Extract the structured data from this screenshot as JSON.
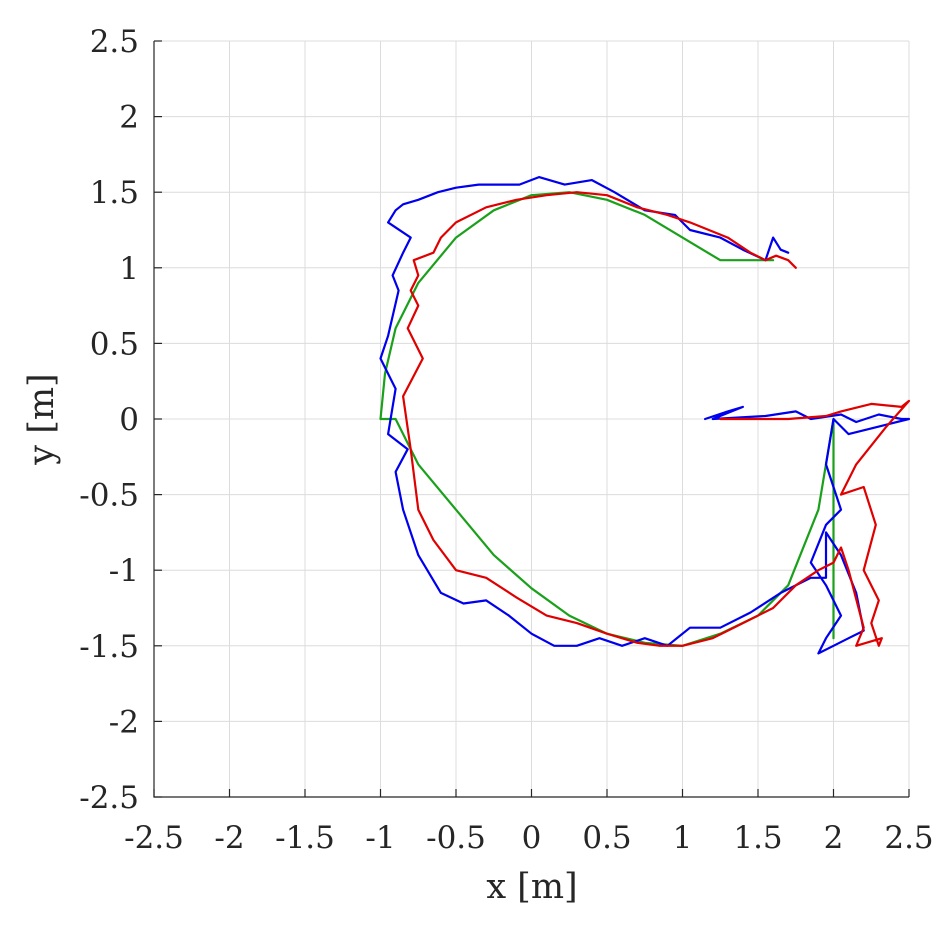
{
  "chart_data": {
    "type": "line",
    "title": "",
    "xlabel": "x [m]",
    "ylabel": "y [m]",
    "xlim": [
      -2.5,
      2.5
    ],
    "ylim": [
      -2.5,
      2.5
    ],
    "xticks": [
      "-2.5",
      "-2",
      "-1.5",
      "-1",
      "-0.5",
      "0",
      "0.5",
      "1",
      "1.5",
      "2",
      "2.5"
    ],
    "yticks": [
      "2.5",
      "2",
      "1.5",
      "1",
      "0.5",
      "0",
      "-0.5",
      "-1",
      "-1.5",
      "-2",
      "-2.5"
    ],
    "grid": true,
    "legend": false,
    "series": [
      {
        "color": "#1aa01a",
        "x": [
          2.0,
          2.0,
          1.9,
          1.7,
          1.5,
          1.25,
          1.0,
          0.75,
          0.5,
          0.25,
          0.0,
          -0.25,
          -0.5,
          -0.75,
          -0.9,
          -1.0,
          -0.97,
          -0.9,
          -0.75,
          -0.5,
          -0.25,
          0.0,
          0.25,
          0.5,
          0.75,
          1.0,
          1.25,
          1.5,
          1.6
        ],
        "y": [
          -1.45,
          0.0,
          -0.6,
          -1.1,
          -1.3,
          -1.42,
          -1.5,
          -1.48,
          -1.42,
          -1.3,
          -1.12,
          -0.9,
          -0.6,
          -0.3,
          0.0,
          0.0,
          0.3,
          0.6,
          0.9,
          1.2,
          1.38,
          1.48,
          1.5,
          1.45,
          1.35,
          1.2,
          1.05,
          1.05,
          1.05
        ]
      },
      {
        "color": "#0000ee",
        "x": [
          1.15,
          1.3,
          1.4,
          1.2,
          1.55,
          1.75,
          1.85,
          2.05,
          2.15,
          2.3,
          2.45,
          2.5,
          2.3,
          2.1,
          2.0,
          1.95,
          2.05,
          1.95,
          1.85,
          1.95,
          2.05,
          1.95,
          1.9,
          2.0,
          2.1,
          2.2,
          2.15,
          2.05,
          1.95,
          1.95,
          1.85,
          1.65,
          1.45,
          1.25,
          1.05,
          0.9,
          0.75,
          0.6,
          0.45,
          0.3,
          0.15,
          0.0,
          -0.15,
          -0.3,
          -0.45,
          -0.6,
          -0.75,
          -0.85,
          -0.9,
          -0.82,
          -0.95,
          -0.9,
          -1.0,
          -0.95,
          -0.88,
          -0.92,
          -0.85,
          -0.8,
          -0.95,
          -0.9,
          -0.85,
          -0.75,
          -0.62,
          -0.5,
          -0.35,
          -0.22,
          -0.08,
          0.05,
          0.22,
          0.4,
          0.55,
          0.75,
          0.95,
          1.05,
          1.25,
          1.4,
          1.55,
          1.6,
          1.65,
          1.7
        ],
        "y": [
          0.0,
          0.05,
          0.08,
          0.0,
          0.02,
          0.05,
          0.0,
          0.03,
          -0.02,
          0.03,
          0.0,
          0.0,
          -0.05,
          -0.1,
          0.0,
          -0.3,
          -0.6,
          -0.7,
          -0.95,
          -1.1,
          -1.3,
          -1.45,
          -1.55,
          -1.5,
          -1.45,
          -1.4,
          -1.15,
          -0.9,
          -0.75,
          -1.05,
          -1.05,
          -1.15,
          -1.28,
          -1.38,
          -1.38,
          -1.5,
          -1.45,
          -1.5,
          -1.45,
          -1.5,
          -1.5,
          -1.42,
          -1.3,
          -1.2,
          -1.22,
          -1.15,
          -0.9,
          -0.6,
          -0.35,
          -0.2,
          -0.1,
          0.2,
          0.4,
          0.55,
          0.85,
          0.95,
          1.1,
          1.2,
          1.3,
          1.38,
          1.42,
          1.45,
          1.5,
          1.53,
          1.55,
          1.55,
          1.55,
          1.6,
          1.55,
          1.58,
          1.5,
          1.38,
          1.35,
          1.25,
          1.2,
          1.12,
          1.05,
          1.2,
          1.12,
          1.1
        ]
      },
      {
        "color": "#e00000",
        "x": [
          1.25,
          1.5,
          1.7,
          1.95,
          2.05,
          2.25,
          2.45,
          2.5,
          2.35,
          2.15,
          2.05,
          2.2,
          2.28,
          2.2,
          2.3,
          2.25,
          2.3,
          2.32,
          2.15,
          2.2,
          2.1,
          2.05,
          2.0,
          1.9,
          1.75,
          1.6,
          1.4,
          1.2,
          1.0,
          0.85,
          0.7,
          0.5,
          0.3,
          0.1,
          -0.1,
          -0.3,
          -0.5,
          -0.65,
          -0.75,
          -0.8,
          -0.85,
          -0.72,
          -0.82,
          -0.75,
          -0.8,
          -0.75,
          -0.78,
          -0.65,
          -0.6,
          -0.5,
          -0.3,
          -0.1,
          0.1,
          0.3,
          0.5,
          0.7,
          0.9,
          1.05,
          1.3,
          1.45,
          1.55,
          1.62,
          1.7,
          1.75
        ],
        "y": [
          0.0,
          0.0,
          0.0,
          0.02,
          0.05,
          0.1,
          0.08,
          0.12,
          -0.05,
          -0.3,
          -0.5,
          -0.45,
          -0.7,
          -1.0,
          -1.2,
          -1.35,
          -1.5,
          -1.45,
          -1.5,
          -1.38,
          -1.0,
          -0.85,
          -0.95,
          -1.0,
          -1.1,
          -1.25,
          -1.35,
          -1.45,
          -1.5,
          -1.5,
          -1.48,
          -1.42,
          -1.35,
          -1.3,
          -1.18,
          -1.05,
          -1.0,
          -0.8,
          -0.6,
          -0.2,
          0.15,
          0.4,
          0.6,
          0.75,
          0.85,
          0.95,
          1.05,
          1.1,
          1.2,
          1.3,
          1.4,
          1.45,
          1.48,
          1.5,
          1.48,
          1.4,
          1.35,
          1.3,
          1.2,
          1.1,
          1.05,
          1.08,
          1.05,
          1.0
        ]
      }
    ]
  }
}
